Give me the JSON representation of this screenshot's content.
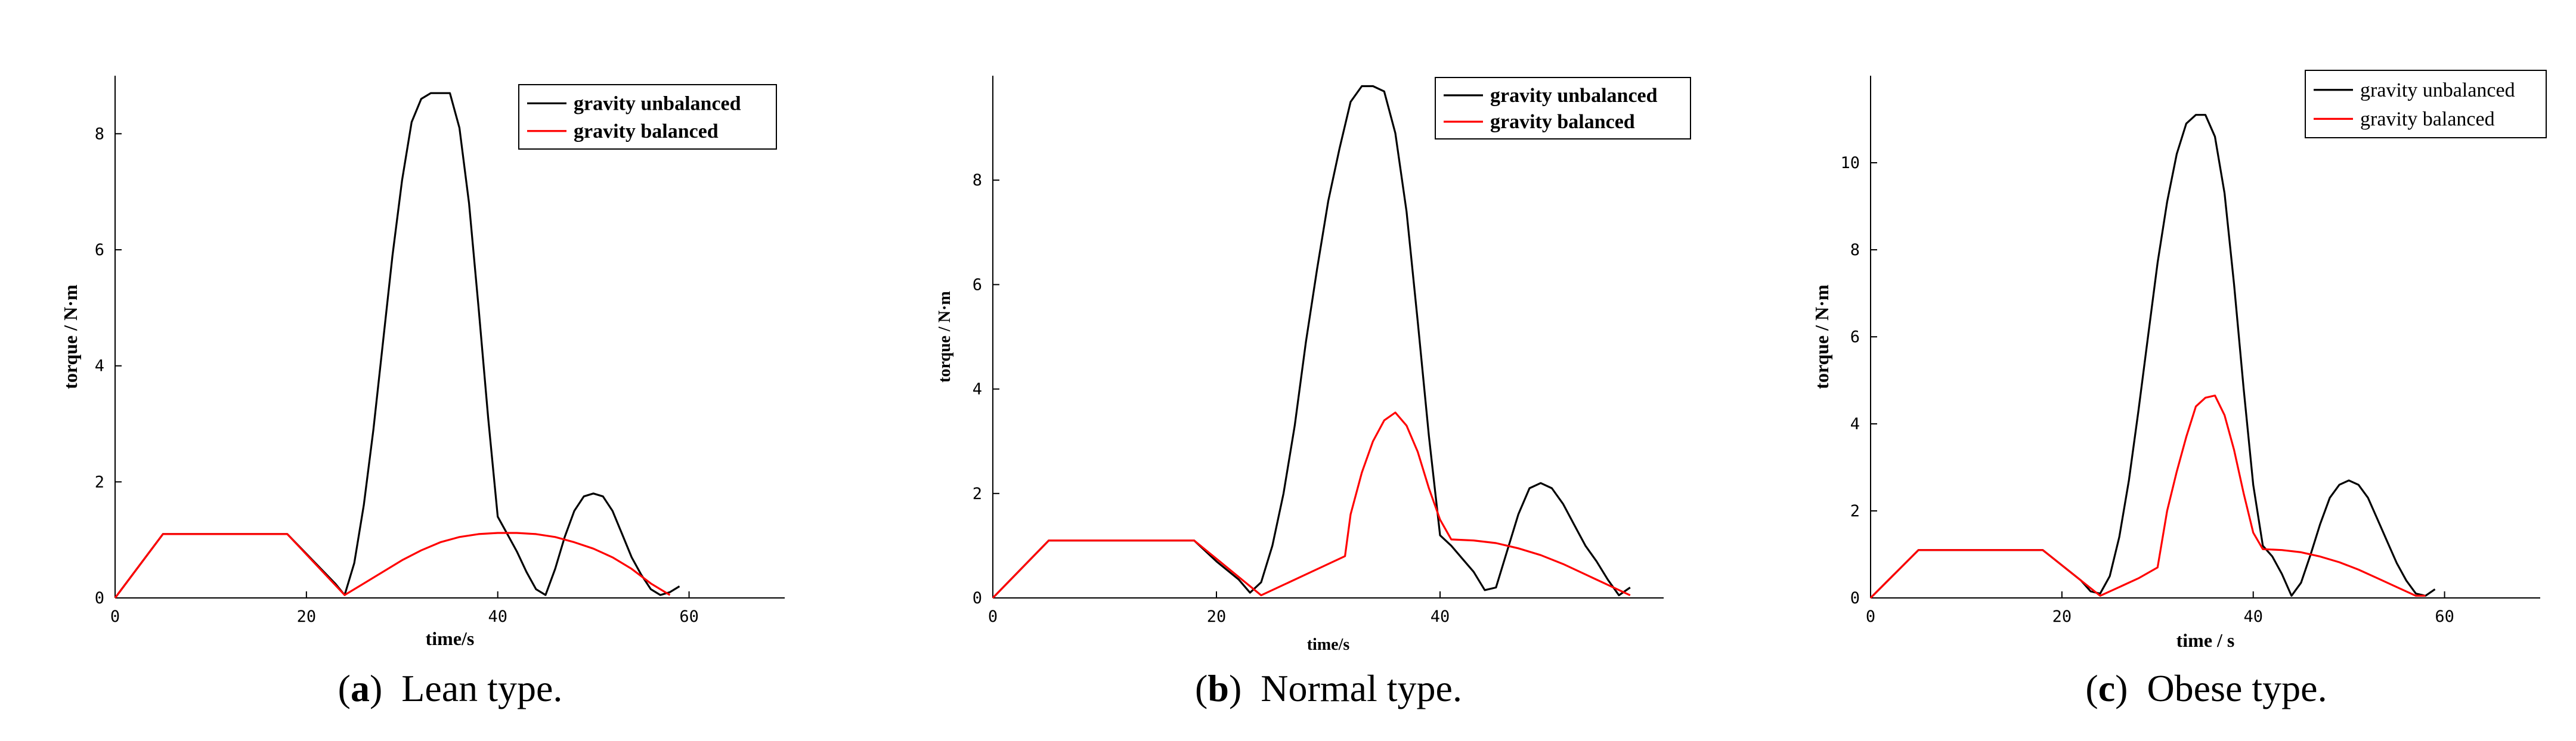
{
  "chart_data": [
    {
      "type": "line",
      "caption": {
        "label": "(a)",
        "letter": "a",
        "text": "Lean type."
      },
      "xlabel": "time/s",
      "ylabel": "torque / N·m",
      "xlim": [
        0,
        70
      ],
      "ylim": [
        0,
        9
      ],
      "xticks": [
        0,
        20,
        40,
        60
      ],
      "yticks": [
        0,
        2,
        4,
        6,
        8
      ],
      "legend_position": "top-right",
      "series": [
        {
          "name": "gravity unbalanced",
          "color": "#000000",
          "x": [
            0,
            5,
            18,
            23,
            24,
            25,
            26,
            27,
            28,
            29,
            30,
            31,
            32,
            33,
            34,
            35,
            36,
            37,
            38,
            39,
            40,
            41,
            42,
            43,
            44,
            45,
            46,
            47,
            48,
            49,
            50,
            51,
            52,
            53,
            54,
            55,
            56,
            57,
            58,
            59
          ],
          "y": [
            0,
            1.1,
            1.1,
            0.25,
            0.05,
            0.6,
            1.6,
            2.9,
            4.4,
            5.9,
            7.2,
            8.2,
            8.6,
            8.7,
            8.7,
            8.7,
            8.1,
            6.8,
            5.0,
            3.1,
            1.4,
            1.1,
            0.8,
            0.45,
            0.15,
            0.05,
            0.5,
            1.05,
            1.5,
            1.75,
            1.8,
            1.75,
            1.5,
            1.1,
            0.7,
            0.4,
            0.15,
            0.05,
            0.1,
            0.2
          ]
        },
        {
          "name": "gravity balanced",
          "color": "#ff0000",
          "x": [
            0,
            5,
            18,
            24,
            26,
            28,
            30,
            32,
            34,
            36,
            38,
            40,
            42,
            44,
            46,
            48,
            50,
            52,
            54,
            56,
            58
          ],
          "y": [
            0,
            1.1,
            1.1,
            0.05,
            0.25,
            0.45,
            0.65,
            0.82,
            0.96,
            1.05,
            1.1,
            1.12,
            1.12,
            1.1,
            1.05,
            0.96,
            0.85,
            0.7,
            0.5,
            0.25,
            0.05
          ]
        }
      ]
    },
    {
      "type": "line",
      "caption": {
        "label": "(b)",
        "letter": "b",
        "text": "Normal type."
      },
      "xlabel": "time/s",
      "ylabel": "torque / N·m",
      "xlim": [
        0,
        60
      ],
      "ylim": [
        0,
        10
      ],
      "xticks": [
        0,
        20,
        40
      ],
      "yticks": [
        0,
        2,
        4,
        6,
        8
      ],
      "legend_position": "top-right",
      "series": [
        {
          "name": "gravity unbalanced",
          "color": "#000000",
          "x": [
            0,
            5,
            18,
            20,
            22,
            23,
            24,
            25,
            26,
            27,
            28,
            29,
            30,
            31,
            32,
            33,
            34,
            35,
            36,
            37,
            38,
            39,
            40,
            41,
            42,
            43,
            44,
            45,
            46,
            47,
            48,
            49,
            50,
            51,
            52,
            53,
            54,
            55,
            56,
            57
          ],
          "y": [
            0,
            1.1,
            1.1,
            0.7,
            0.35,
            0.1,
            0.3,
            1.0,
            2.0,
            3.3,
            4.9,
            6.3,
            7.6,
            8.6,
            9.5,
            9.8,
            9.8,
            9.7,
            8.9,
            7.4,
            5.3,
            3.1,
            1.2,
            1.0,
            0.75,
            0.5,
            0.15,
            0.2,
            0.9,
            1.6,
            2.1,
            2.2,
            2.1,
            1.8,
            1.4,
            1.0,
            0.7,
            0.35,
            0.05,
            0.2
          ]
        },
        {
          "name": "gravity balanced",
          "color": "#ff0000",
          "x": [
            0,
            5,
            18,
            24,
            26,
            28,
            30,
            31.5,
            32,
            33,
            34,
            35,
            36,
            37,
            38,
            39,
            40,
            41,
            43,
            45,
            47,
            49,
            51,
            53,
            55,
            57
          ],
          "y": [
            0,
            1.1,
            1.1,
            0.05,
            0.25,
            0.45,
            0.65,
            0.8,
            1.6,
            2.4,
            3.0,
            3.4,
            3.55,
            3.3,
            2.8,
            2.1,
            1.5,
            1.12,
            1.1,
            1.05,
            0.95,
            0.82,
            0.65,
            0.45,
            0.25,
            0.05
          ]
        }
      ]
    },
    {
      "type": "line",
      "caption": {
        "label": "(c)",
        "letter": "c",
        "text": "Obese type."
      },
      "xlabel": "time / s",
      "ylabel": "torque / N·m",
      "xlim": [
        0,
        70
      ],
      "ylim": [
        0,
        12
      ],
      "xticks": [
        0,
        20,
        40,
        60
      ],
      "yticks": [
        0,
        2,
        4,
        6,
        8,
        10
      ],
      "legend_position": "top-right",
      "series": [
        {
          "name": "gravity unbalanced",
          "color": "#000000",
          "x": [
            0,
            5,
            18,
            22,
            23,
            24,
            25,
            26,
            27,
            28,
            29,
            30,
            31,
            32,
            33,
            34,
            35,
            36,
            37,
            38,
            39,
            40,
            41,
            42,
            43,
            44,
            45,
            46,
            47,
            48,
            49,
            50,
            51,
            52,
            53,
            54,
            55,
            56,
            57,
            58,
            59
          ],
          "y": [
            0,
            1.1,
            1.1,
            0.4,
            0.15,
            0.1,
            0.5,
            1.4,
            2.7,
            4.3,
            6.0,
            7.7,
            9.1,
            10.2,
            10.9,
            11.1,
            11.1,
            10.6,
            9.3,
            7.2,
            4.8,
            2.6,
            1.2,
            0.95,
            0.55,
            0.05,
            0.35,
            1.0,
            1.7,
            2.3,
            2.6,
            2.7,
            2.6,
            2.3,
            1.8,
            1.3,
            0.8,
            0.4,
            0.1,
            0.05,
            0.2
          ]
        },
        {
          "name": "gravity balanced",
          "color": "#ff0000",
          "x": [
            0,
            5,
            18,
            24,
            26,
            28,
            30,
            31,
            32,
            33,
            34,
            35,
            36,
            37,
            38,
            39,
            40,
            41,
            43,
            45,
            47,
            49,
            51,
            53,
            55,
            57,
            58
          ],
          "y": [
            0,
            1.1,
            1.1,
            0.05,
            0.25,
            0.45,
            0.7,
            2.0,
            2.9,
            3.7,
            4.4,
            4.6,
            4.65,
            4.2,
            3.4,
            2.4,
            1.5,
            1.12,
            1.1,
            1.05,
            0.95,
            0.82,
            0.65,
            0.45,
            0.25,
            0.05,
            0.05
          ]
        }
      ]
    }
  ]
}
